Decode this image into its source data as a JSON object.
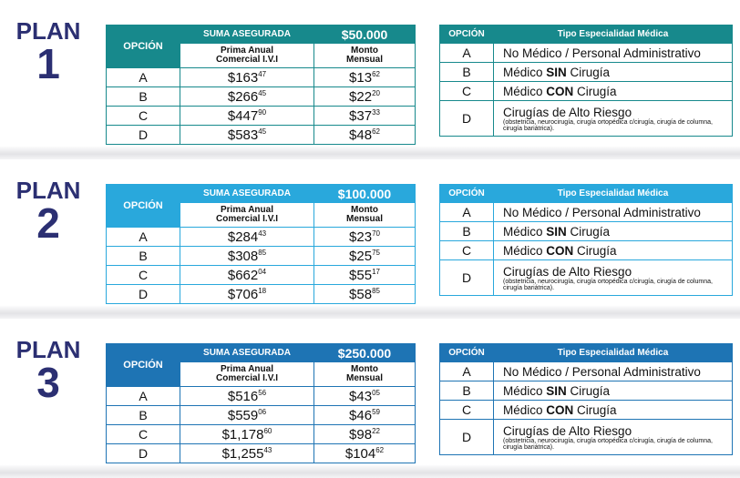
{
  "plans": [
    {
      "label": "PLAN",
      "number": "1",
      "color": "#17898c",
      "table": {
        "option_header": "OPCIÓN",
        "sum_header": "SUMA ASEGURADA",
        "sum_value": "$50.000",
        "col1": [
          "Prima Anual",
          "Comercial I.V.I"
        ],
        "col2": [
          "Monto",
          "Mensual"
        ],
        "rows": [
          {
            "option": "A",
            "annual": {
              "main": "$163",
              "cents": "47"
            },
            "monthly": {
              "main": "$13",
              "cents": "62"
            }
          },
          {
            "option": "B",
            "annual": {
              "main": "$266",
              "cents": "45"
            },
            "monthly": {
              "main": "$22",
              "cents": "20"
            }
          },
          {
            "option": "C",
            "annual": {
              "main": "$447",
              "cents": "90"
            },
            "monthly": {
              "main": "$37",
              "cents": "33"
            }
          },
          {
            "option": "D",
            "annual": {
              "main": "$583",
              "cents": "45"
            },
            "monthly": {
              "main": "$48",
              "cents": "62"
            }
          }
        ]
      },
      "specialty": {
        "option_header": "OPCIÓN",
        "type_header": "Tipo Especialidad Médica",
        "rows": [
          {
            "option": "A",
            "text": [
              "No Médico / Personal Administrativo"
            ]
          },
          {
            "option": "B",
            "text": [
              "Médico ",
              "SIN",
              " Cirugía"
            ]
          },
          {
            "option": "C",
            "text": [
              "Médico ",
              "CON",
              " Cirugía"
            ]
          },
          {
            "option": "D",
            "text": [
              "Cirugías de Alto Riesgo"
            ],
            "note": "(obstetricia, neurocirugía, cirugía ortopédica c/cirugía, cirugía de columna, cirugía bariátrica)."
          }
        ]
      }
    },
    {
      "label": "PLAN",
      "number": "2",
      "color": "#29a8dc",
      "table": {
        "option_header": "OPCIÓN",
        "sum_header": "SUMA ASEGURADA",
        "sum_value": "$100.000",
        "col1": [
          "Prima Anual",
          "Comercial I.V.I"
        ],
        "col2": [
          "Monto",
          "Mensual"
        ],
        "rows": [
          {
            "option": "A",
            "annual": {
              "main": "$284",
              "cents": "43"
            },
            "monthly": {
              "main": "$23",
              "cents": "70"
            }
          },
          {
            "option": "B",
            "annual": {
              "main": "$308",
              "cents": "85"
            },
            "monthly": {
              "main": "$25",
              "cents": "75"
            }
          },
          {
            "option": "C",
            "annual": {
              "main": "$662",
              "cents": "04"
            },
            "monthly": {
              "main": "$55",
              "cents": "17"
            }
          },
          {
            "option": "D",
            "annual": {
              "main": "$706",
              "cents": "18"
            },
            "monthly": {
              "main": "$58",
              "cents": "85"
            }
          }
        ]
      },
      "specialty": {
        "option_header": "OPCIÓN",
        "type_header": "Tipo Especialidad Médica",
        "rows": [
          {
            "option": "A",
            "text": [
              "No Médico / Personal Administrativo"
            ]
          },
          {
            "option": "B",
            "text": [
              "Médico ",
              "SIN",
              " Cirugía"
            ]
          },
          {
            "option": "C",
            "text": [
              "Médico ",
              "CON",
              " Cirugía"
            ]
          },
          {
            "option": "D",
            "text": [
              "Cirugías de Alto Riesgo"
            ],
            "note": "(obstetricia, neurocirugía, cirugía ortopédica c/cirugía, cirugía de columna, cirugía bariátrica)."
          }
        ]
      }
    },
    {
      "label": "PLAN",
      "number": "3",
      "color": "#1e74b4",
      "table": {
        "option_header": "OPCIÓN",
        "sum_header": "SUMA ASEGURADA",
        "sum_value": "$250.000",
        "col1": [
          "Prima Anual",
          "Comercial I.V.I"
        ],
        "col2": [
          "Monto",
          "Mensual"
        ],
        "rows": [
          {
            "option": "A",
            "annual": {
              "main": "$516",
              "cents": "56"
            },
            "monthly": {
              "main": "$43",
              "cents": "05"
            }
          },
          {
            "option": "B",
            "annual": {
              "main": "$559",
              "cents": "06"
            },
            "monthly": {
              "main": "$46",
              "cents": "59"
            }
          },
          {
            "option": "C",
            "annual": {
              "main": "$1,178",
              "cents": "60"
            },
            "monthly": {
              "main": "$98",
              "cents": "22"
            }
          },
          {
            "option": "D",
            "annual": {
              "main": "$1,255",
              "cents": "43"
            },
            "monthly": {
              "main": "$104",
              "cents": "62"
            }
          }
        ]
      },
      "specialty": {
        "option_header": "OPCIÓN",
        "type_header": "Tipo Especialidad Médica",
        "rows": [
          {
            "option": "A",
            "text": [
              "No Médico / Personal Administrativo"
            ]
          },
          {
            "option": "B",
            "text": [
              "Médico ",
              "SIN",
              " Cirugía"
            ]
          },
          {
            "option": "C",
            "text": [
              "Médico ",
              "CON",
              " Cirugía"
            ]
          },
          {
            "option": "D",
            "text": [
              "Cirugías de Alto Riesgo"
            ],
            "note": "(obstetricia, neurocirugía, cirugía ortopédica c/cirugía, cirugía de columna, cirugía bariátrica)."
          }
        ]
      }
    }
  ]
}
